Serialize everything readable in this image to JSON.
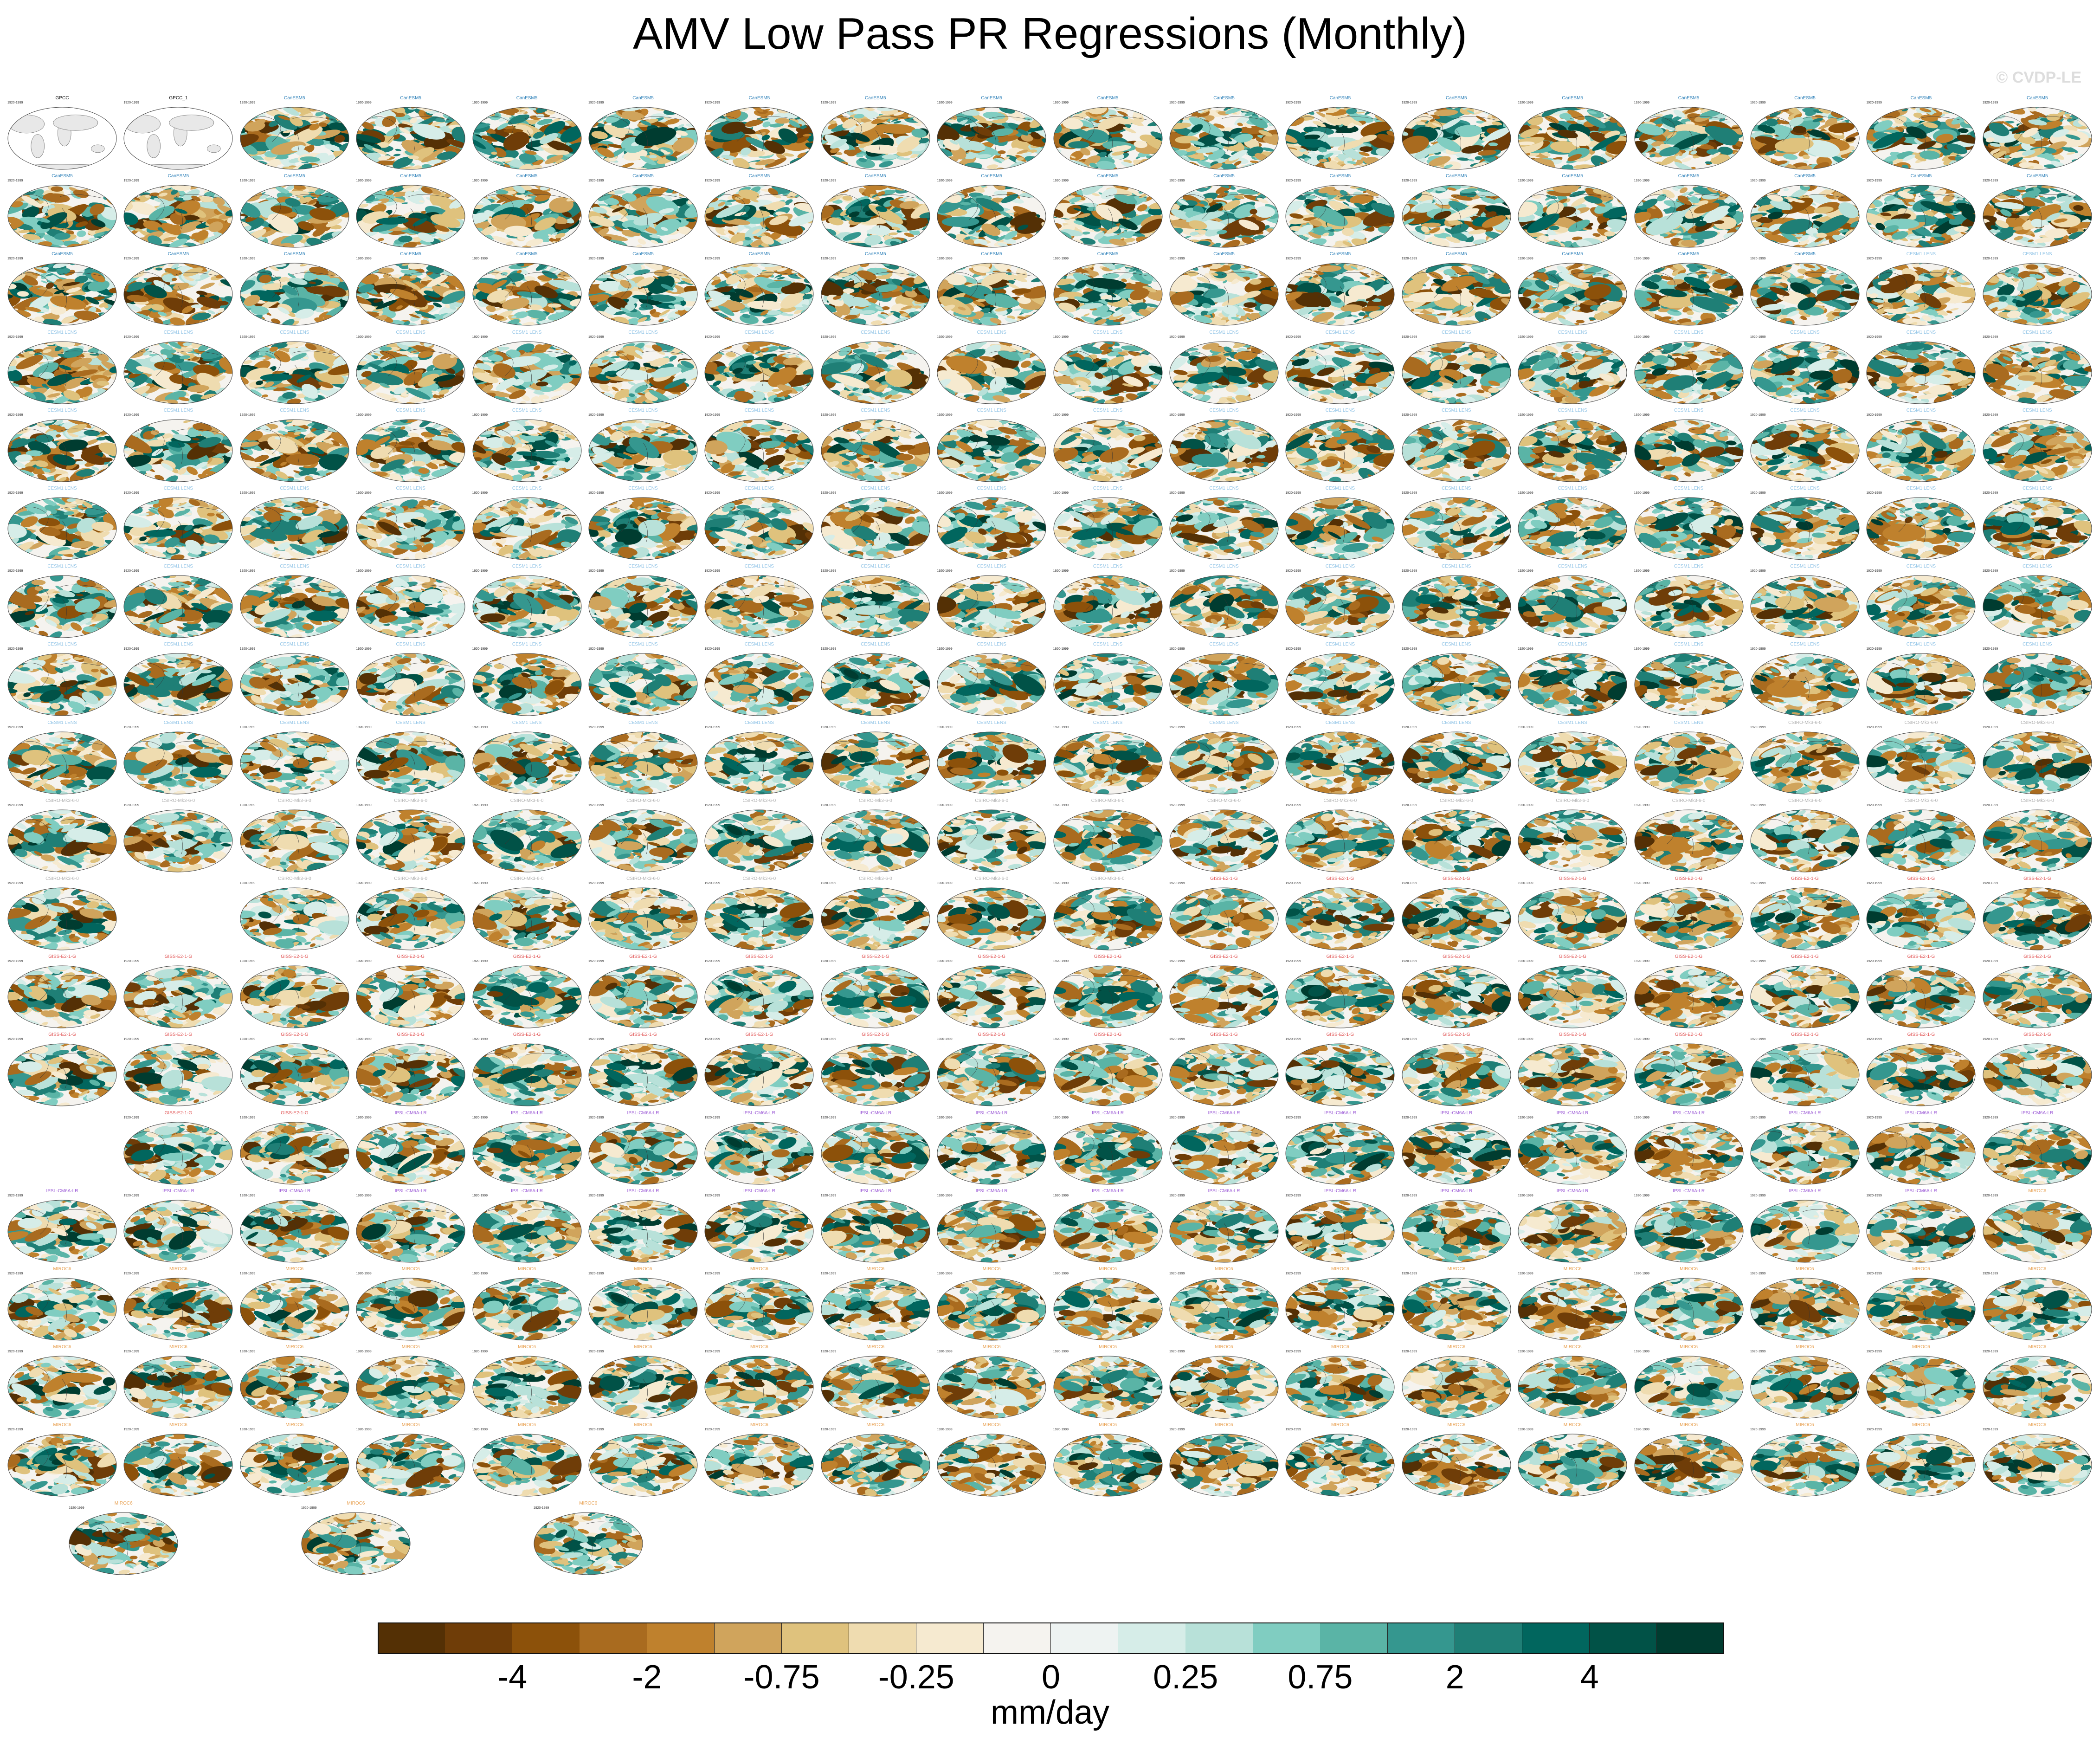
{
  "title": "AMV Low Pass PR Regressions (Monthly)",
  "watermark": "© CVDP-LE",
  "panel_years": "1920-1999",
  "colors": {
    "brown_dark": "#543005",
    "teal_dark": "#003c30",
    "neutral": "#f5f5f5",
    "land": "#e8e8e8"
  },
  "chart_data": {
    "type": "heatmap",
    "title": "AMV Low Pass PR Regressions (Monthly)",
    "grid_layout": {
      "rows": [
        18,
        18,
        18,
        18,
        18,
        18,
        18,
        18,
        18,
        18,
        17,
        18,
        18,
        17,
        18,
        18,
        18,
        18,
        3
      ],
      "row_start_col": [
        0,
        0,
        0,
        0,
        0,
        0,
        0,
        0,
        0,
        0,
        0,
        0,
        0,
        1,
        0,
        0,
        0,
        0,
        7
      ],
      "row_skip_cols": [
        [],
        [],
        [],
        [],
        [],
        [],
        [],
        [],
        [],
        [],
        [
          1
        ],
        [],
        [],
        [],
        [],
        [],
        [],
        [],
        []
      ]
    },
    "observations": [
      "GPCC",
      "GPCC_1"
    ],
    "ensembles": [
      {
        "name": "CanESM5",
        "color": "#2b7fb8"
      },
      {
        "name": "CESM1 LENS",
        "color": "#8fc3e6"
      },
      {
        "name": "CSIRO-Mk3-6-0",
        "color": "#b0b0b0"
      },
      {
        "name": "GISS-E2-1-G",
        "color": "#e05050"
      },
      {
        "name": "IPSL-CM6A-LR",
        "color": "#9b59d6"
      },
      {
        "name": "MIROC6",
        "color": "#e8a050"
      }
    ],
    "colorbar": {
      "label": "mm/day",
      "ticks": [
        "-4",
        "-2",
        "-0.75",
        "-0.25",
        "0",
        "0.25",
        "0.75",
        "2",
        "4"
      ],
      "colors": [
        "#543005",
        "#6f3d08",
        "#8c510a",
        "#a96b1f",
        "#bf812d",
        "#d0a45c",
        "#dfc27d",
        "#efdcb0",
        "#f6ead0",
        "#f5f3ef",
        "#eef3f2",
        "#d6ede8",
        "#b8e1d9",
        "#80cdc1",
        "#5ab4a6",
        "#35978f",
        "#1f7f76",
        "#01665e",
        "#015247",
        "#003c30"
      ]
    }
  }
}
